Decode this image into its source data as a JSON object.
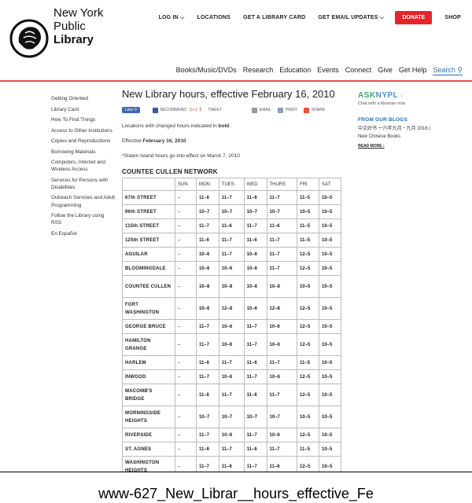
{
  "logo": {
    "line1": "New York",
    "line2": "Public",
    "line3": "Library"
  },
  "topnav": [
    {
      "label": "LOG IN",
      "caret": true
    },
    {
      "label": "LOCATIONS",
      "caret": false
    },
    {
      "label": "GET A LIBRARY CARD",
      "caret": false
    },
    {
      "label": "GET EMAIL UPDATES",
      "caret": true
    }
  ],
  "donate": "DONATE",
  "shop": "SHOP",
  "mainnav": [
    "Books/Music/DVDs",
    "Research",
    "Education",
    "Events",
    "Connect",
    "Give",
    "Get Help"
  ],
  "search_label": "Search",
  "sidebar": [
    "Getting Oriented",
    "Library Card",
    "How To Find Things",
    "Access to Other Institutions",
    "Copies and Reproductions",
    "Borrowing Materials",
    "Computers, Internet and Wireless Access",
    "Services for Persons with Disabilities",
    "Outreach Services and Adult Programming",
    "Follow the Library using RSS",
    "En Español"
  ],
  "page_title": "New Library hours, effective February 16, 2010",
  "social": {
    "like": "Like 0",
    "recommend": "RECOMMEND",
    "gplus": "G+1",
    "gcount": "0",
    "tweet": "TWEET",
    "email": "EMAIL",
    "print": "PRINT",
    "share": "SHARE"
  },
  "intro": {
    "changed_prefix": "Locations with changed hours indicated in ",
    "changed_bold": "bold",
    "changed_suffix": ".",
    "effective_prefix": "Effective ",
    "effective_bold": "February 16, 2010",
    "staten": "*Staten Island hours go into effect on March 7, 2010"
  },
  "network": "COUNTEE CULLEN NETWORK",
  "table": {
    "headers": [
      "",
      "SUN",
      "MON",
      "TUES",
      "WED",
      "THURS",
      "FRI",
      "SAT"
    ],
    "rows": [
      [
        "67th STREET",
        "–",
        "11–6",
        "11–7",
        "11–6",
        "11–7",
        "11–5",
        "10–5"
      ],
      [
        "96th STREET",
        "–",
        "10–7",
        "10–7",
        "10–7",
        "10–7",
        "10–5",
        "10–5"
      ],
      [
        "115th STREET",
        "–",
        "11–7",
        "11–6",
        "11–7",
        "11–6",
        "11–5",
        "10–5"
      ],
      [
        "125th STREET",
        "–",
        "11–6",
        "11–7",
        "11–6",
        "11–7",
        "11–5",
        "10–5"
      ],
      [
        "AGUILAR",
        "–",
        "10–6",
        "11–7",
        "10–6",
        "11–7",
        "12–5",
        "10–5"
      ],
      [
        "BLOOMINGDALE",
        "–",
        "10–6",
        "10–6",
        "10–6",
        "11–7",
        "12–5",
        "10–5"
      ],
      [
        "COUNTEE CULLEN",
        "–",
        "10–8",
        "10–8",
        "10–8",
        "10–8",
        "10–5",
        "10–5"
      ],
      [
        "FORT WASHINGTON",
        "–",
        "10–6",
        "12–8",
        "10–6",
        "12–8",
        "12–5",
        "10–5"
      ],
      [
        "GEORGE BRUCE",
        "–",
        "11–7",
        "10–6",
        "11–7",
        "10–6",
        "12–5",
        "10–5"
      ],
      [
        "HAMILTON GRANGE",
        "–",
        "11–7",
        "10–6",
        "11–7",
        "10–6",
        "12–5",
        "10–5"
      ],
      [
        "HARLEM",
        "–",
        "11–6",
        "11–7",
        "11–6",
        "11–7",
        "11–5",
        "10–5"
      ],
      [
        "INWOOD",
        "–",
        "11–7",
        "10–6",
        "11–7",
        "10–6",
        "12–5",
        "10–5"
      ],
      [
        "MACOMB'S BRIDGE",
        "–",
        "11–6",
        "11–7",
        "11–6",
        "11–7",
        "12–5",
        "10–5"
      ],
      [
        "MORNINGSIDE HEIGHTS",
        "–",
        "10–7",
        "10–7",
        "10–7",
        "10–7",
        "10–5",
        "10–5"
      ],
      [
        "RIVERSIDE",
        "–",
        "11–7",
        "10–6",
        "11–7",
        "10–6",
        "12–5",
        "10–5"
      ],
      [
        "ST. AGNES",
        "–",
        "11–6",
        "11–7",
        "11–6",
        "11–7",
        "11–5",
        "10–5"
      ],
      [
        "WASHINGTON HEIGHTS",
        "–",
        "11–7",
        "11–6",
        "11–7",
        "11–6",
        "12–5",
        "10–5"
      ]
    ]
  },
  "ask": {
    "part1": "ASK",
    "part2": "NYPL",
    "sub": "Chat with a librarian now"
  },
  "blogs": {
    "heading": "FROM OUR BLOGS",
    "text": "中文好书 一六年九月・九月 2016 | New Chinese Books",
    "readmore": "READ MORE ›"
  },
  "caption": "www-627_New_Librar__hours_effective_Fe"
}
